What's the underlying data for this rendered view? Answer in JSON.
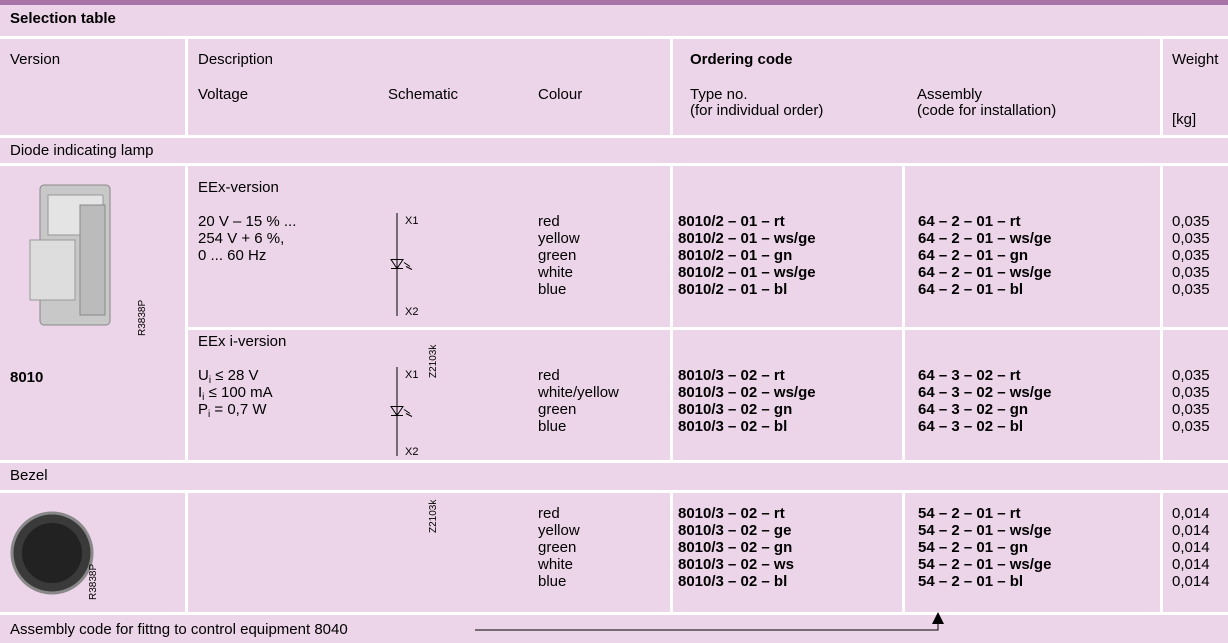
{
  "title": "Selection table",
  "header": {
    "version": "Version",
    "description": "Description",
    "voltage": "Voltage",
    "schematic": "Schematic",
    "colour": "Colour",
    "ordering_code": "Ordering code",
    "type_no": "Type no.",
    "type_no_note": "(for individual order)",
    "assembly": "Assembly",
    "assembly_note": "(code for installation)",
    "weight": "Weight",
    "weight_unit": "[kg]"
  },
  "sections": [
    {
      "title": "Diode indicating lamp",
      "image_label": "R3838P",
      "version": "8010",
      "groups": [
        {
          "title": "EEx-version",
          "voltage": [
            "20 V – 15 % ...",
            "254 V + 6 %,",
            "0 ... 60 Hz"
          ],
          "schematic": {
            "top": "X1",
            "bottom": "X2"
          },
          "rows": [
            {
              "colour": "red",
              "type_no": "8010/2 – 01 – rt",
              "assembly": "64 – 2 – 01 – rt",
              "weight": "0,035"
            },
            {
              "colour": "yellow",
              "type_no": "8010/2 – 01 – ws/ge",
              "assembly": "64 – 2 – 01 – ws/ge",
              "weight": "0,035"
            },
            {
              "colour": "green",
              "type_no": "8010/2 – 01 – gn",
              "assembly": "64 – 2 – 01 – gn",
              "weight": "0,035"
            },
            {
              "colour": "white",
              "type_no": "8010/2 – 01 – ws/ge",
              "assembly": "64 – 2 – 01 – ws/ge",
              "weight": "0,035"
            },
            {
              "colour": "blue",
              "type_no": "8010/2 – 01 – bl",
              "assembly": "64 – 2 – 01 – bl",
              "weight": "0,035"
            }
          ]
        },
        {
          "title": "EEx i-version",
          "voltage": [
            {
              "symbol": "U",
              "sub": "i",
              "rest": " ≤ 28 V"
            },
            {
              "symbol": "I",
              "sub": "i",
              "rest": " ≤ 100 mA"
            },
            {
              "symbol": "P",
              "sub": "i",
              "rest": " = 0,7 W"
            }
          ],
          "schematic": {
            "top": "X1",
            "bottom": "X2",
            "drawing_no": "Z2103k"
          },
          "rows": [
            {
              "colour": "red",
              "type_no": "8010/3 – 02 – rt",
              "assembly": "64 – 3 – 02 – rt",
              "weight": "0,035"
            },
            {
              "colour": "white/yellow",
              "type_no": "8010/3 – 02 – ws/ge",
              "assembly": "64 – 3 – 02 – ws/ge",
              "weight": "0,035"
            },
            {
              "colour": "green",
              "type_no": "8010/3 – 02 – gn",
              "assembly": "64 – 3 – 02 – gn",
              "weight": "0,035"
            },
            {
              "colour": "blue",
              "type_no": "8010/3 – 02 – bl",
              "assembly": "64 – 3 – 02 – bl",
              "weight": "0,035"
            }
          ]
        }
      ]
    },
    {
      "title": "Bezel",
      "image_label": "R3838P",
      "groups": [
        {
          "schematic": {
            "drawing_no": "Z2103k"
          },
          "rows": [
            {
              "colour": "red",
              "type_no": "8010/3 – 02 – rt",
              "assembly": "54 – 2 – 01 – rt",
              "weight": "0,014"
            },
            {
              "colour": "yellow",
              "type_no": "8010/3 – 02 – ge",
              "assembly": "54 – 2 – 01 – ws/ge",
              "weight": "0,014"
            },
            {
              "colour": "green",
              "type_no": "8010/3 – 02 – gn",
              "assembly": "54 – 2 – 01 – gn",
              "weight": "0,014"
            },
            {
              "colour": "white",
              "type_no": "8010/3 – 02 – ws",
              "assembly": "54 – 2 – 01 – ws/ge",
              "weight": "0,014"
            },
            {
              "colour": "blue",
              "type_no": "8010/3 – 02 – bl",
              "assembly": "54 – 2 – 01 – bl",
              "weight": "0,014"
            }
          ]
        }
      ]
    }
  ],
  "footer": "Assembly code for fittng to control equipment 8040"
}
